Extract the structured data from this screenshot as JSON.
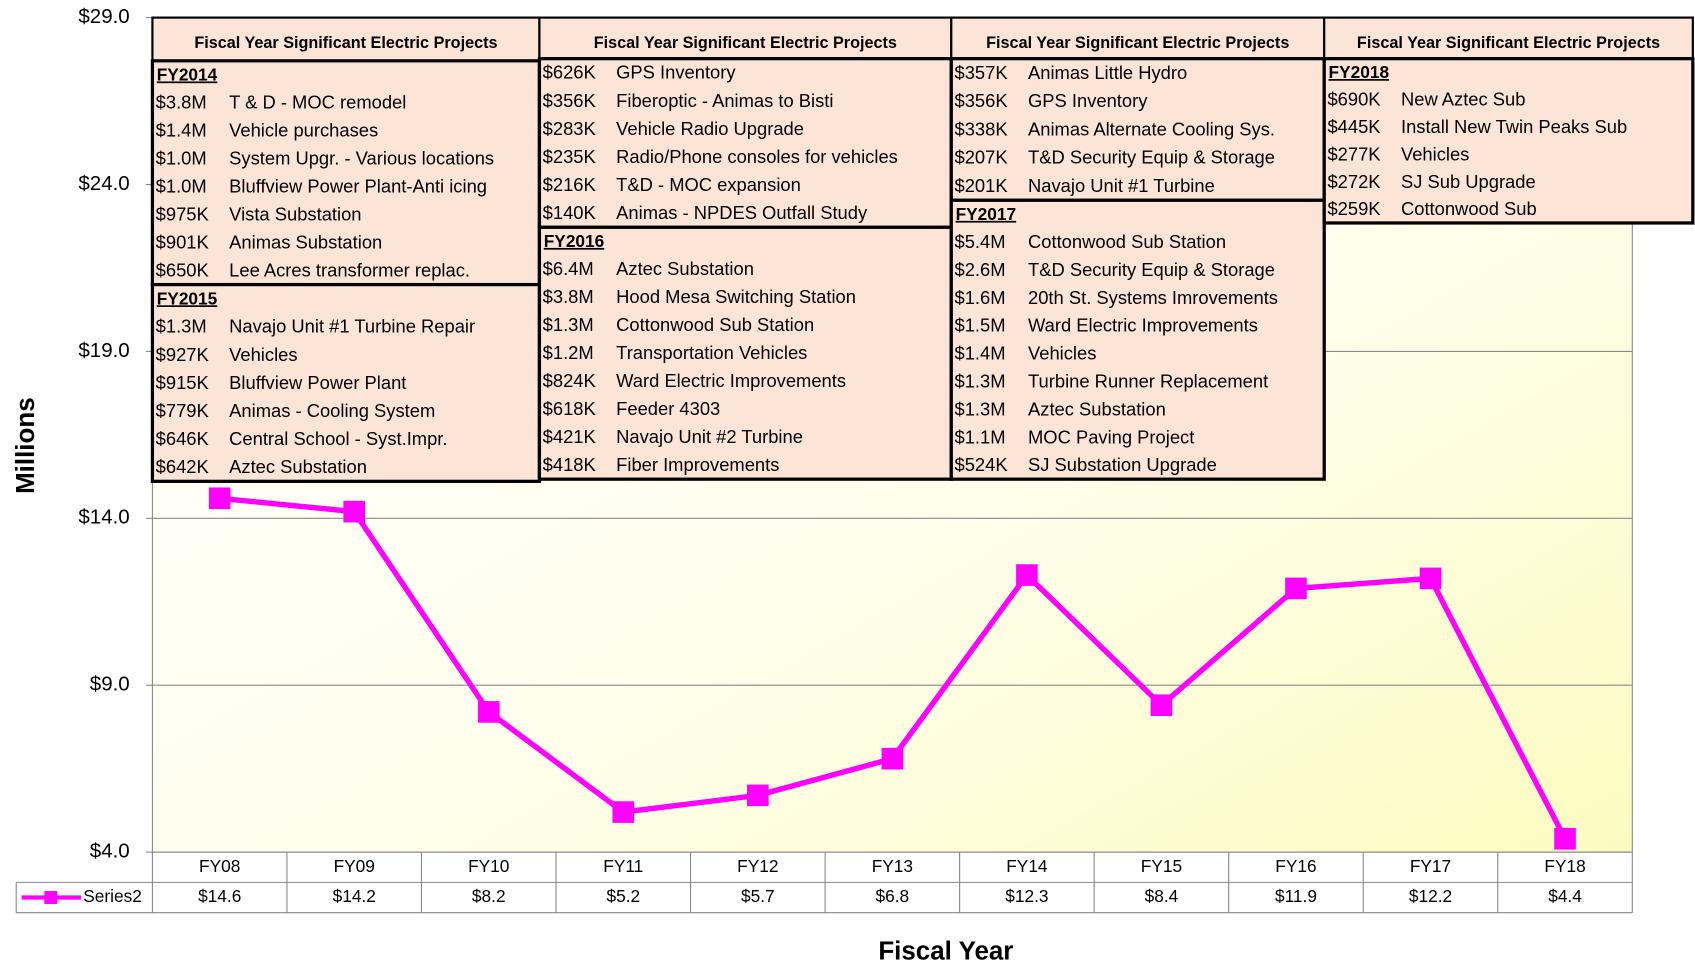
{
  "chart_data": {
    "type": "line",
    "ylabel": "Millions",
    "xlabel": "Fiscal Year",
    "categories": [
      "FY08",
      "FY09",
      "FY10",
      "FY11",
      "FY12",
      "FY13",
      "FY14",
      "FY15",
      "FY16",
      "FY17",
      "FY18"
    ],
    "series": [
      {
        "name": "Series2",
        "color": "#ff00ff",
        "values": [
          14.6,
          14.2,
          8.2,
          5.2,
          5.7,
          6.8,
          12.3,
          8.4,
          11.9,
          12.2,
          4.4
        ],
        "value_labels": [
          "$14.6",
          "$14.2",
          "$8.2",
          "$5.2",
          "$5.7",
          "$6.8",
          "$12.3",
          "$8.4",
          "$11.9",
          "$12.2",
          "$4.4"
        ]
      }
    ],
    "ylim": [
      4,
      29
    ],
    "yticks": [
      {
        "value": 4,
        "label": "$4.0"
      },
      {
        "value": 9,
        "label": "$9.0"
      },
      {
        "value": 14,
        "label": "$14.0"
      },
      {
        "value": 19,
        "label": "$19.0"
      },
      {
        "value": 24,
        "label": "$24.0"
      },
      {
        "value": 29,
        "label": "$29.0"
      }
    ],
    "grid": true
  },
  "project_boxes": [
    {
      "header": "Fiscal Year Significant Electric Projects",
      "sections": [
        {
          "year": "FY2014",
          "items": [
            {
              "amount": "$3.8M",
              "project": "T & D - MOC remodel"
            },
            {
              "amount": "$1.4M",
              "project": "Vehicle purchases"
            },
            {
              "amount": "$1.0M",
              "project": "System Upgr. - Various locations"
            },
            {
              "amount": "$1.0M",
              "project": "Bluffview Power Plant-Anti icing"
            },
            {
              "amount": "$975K",
              "project": "Vista Substation"
            },
            {
              "amount": "$901K",
              "project": "Animas Substation"
            },
            {
              "amount": "$650K",
              "project": "Lee Acres transformer replac."
            }
          ]
        },
        {
          "year": "FY2015",
          "items": [
            {
              "amount": "$1.3M",
              "project": "Navajo Unit #1 Turbine Repair"
            },
            {
              "amount": "$927K",
              "project": "Vehicles"
            },
            {
              "amount": "$915K",
              "project": "Bluffview Power Plant"
            },
            {
              "amount": "$779K",
              "project": "Animas - Cooling System"
            },
            {
              "amount": "$646K",
              "project": "Central School - Syst.Impr."
            },
            {
              "amount": "$642K",
              "project": "Aztec Substation"
            }
          ]
        }
      ]
    },
    {
      "header": "Fiscal Year Significant Electric Projects",
      "sections": [
        {
          "items": [
            {
              "amount": "$626K",
              "project": "GPS Inventory"
            },
            {
              "amount": "$356K",
              "project": "Fiberoptic - Animas to Bisti"
            },
            {
              "amount": "$283K",
              "project": "Vehicle Radio Upgrade"
            },
            {
              "amount": "$235K",
              "project": "Radio/Phone consoles for vehicles"
            },
            {
              "amount": "$216K",
              "project": "T&D - MOC expansion"
            },
            {
              "amount": "$140K",
              "project": "Animas - NPDES Outfall Study"
            }
          ]
        },
        {
          "year": "FY2016",
          "items": [
            {
              "amount": "$6.4M",
              "project": "Aztec Substation"
            },
            {
              "amount": "$3.8M",
              "project": "Hood Mesa Switching Station"
            },
            {
              "amount": "$1.3M",
              "project": "Cottonwood Sub Station"
            },
            {
              "amount": "$1.2M",
              "project": "Transportation Vehicles"
            },
            {
              "amount": "$824K",
              "project": "Ward Electric Improvements"
            },
            {
              "amount": "$618K",
              "project": "Feeder 4303"
            },
            {
              "amount": "$421K",
              "project": "Navajo Unit #2 Turbine"
            },
            {
              "amount": "$418K",
              "project": "Fiber Improvements"
            }
          ]
        }
      ]
    },
    {
      "header": "Fiscal Year Significant Electric Projects",
      "sections": [
        {
          "items": [
            {
              "amount": "$357K",
              "project": "Animas Little Hydro"
            },
            {
              "amount": "$356K",
              "project": "GPS Inventory"
            },
            {
              "amount": "$338K",
              "project": "Animas Alternate Cooling Sys."
            },
            {
              "amount": "$207K",
              "project": "T&D Security Equip & Storage"
            },
            {
              "amount": "$201K",
              "project": "Navajo Unit #1 Turbine"
            }
          ]
        },
        {
          "year": "FY2017",
          "items": [
            {
              "amount": "$5.4M",
              "project": "Cottonwood Sub Station"
            },
            {
              "amount": "$2.6M",
              "project": "T&D Security Equip & Storage"
            },
            {
              "amount": "$1.6M",
              "project": "20th St. Systems Imrovements"
            },
            {
              "amount": "$1.5M",
              "project": "Ward Electric Improvements"
            },
            {
              "amount": "$1.4M",
              "project": "Vehicles"
            },
            {
              "amount": "$1.3M",
              "project": "Turbine Runner Replacement"
            },
            {
              "amount": "$1.3M",
              "project": "Aztec Substation"
            },
            {
              "amount": "$1.1M",
              "project": "MOC Paving Project"
            },
            {
              "amount": "$524K",
              "project": "SJ Substation Upgrade"
            }
          ]
        }
      ]
    },
    {
      "header": "Fiscal Year Significant Electric Projects",
      "sections": [
        {
          "year": "FY2018",
          "items": [
            {
              "amount": "$690K",
              "project": "New Aztec Sub"
            },
            {
              "amount": "$445K",
              "project": "Install New Twin Peaks Sub"
            },
            {
              "amount": "$277K",
              "project": "Vehicles"
            },
            {
              "amount": "$272K",
              "project": "SJ Sub Upgrade"
            },
            {
              "amount": "$259K",
              "project": "Cottonwood Sub"
            }
          ]
        }
      ]
    }
  ]
}
